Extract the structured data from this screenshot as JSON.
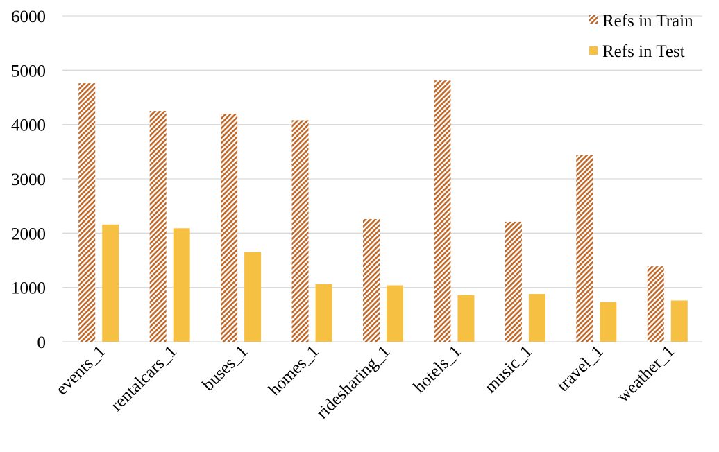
{
  "chart_data": {
    "type": "bar",
    "categories": [
      "events_1",
      "rentalcars_1",
      "buses_1",
      "homes_1",
      "ridesharing_1",
      "hotels_1",
      "music_1",
      "travel_1",
      "weather_1"
    ],
    "series": [
      {
        "name": "Refs in Train",
        "values": [
          4760,
          4250,
          4200,
          4080,
          2260,
          4810,
          2210,
          3440,
          1390
        ],
        "color": "#c0692a",
        "pattern": "diagonal-hatch"
      },
      {
        "name": "Refs in Test",
        "values": [
          2160,
          2090,
          1650,
          1060,
          1040,
          860,
          880,
          730,
          760
        ],
        "color": "#f6c143",
        "pattern": "solid"
      }
    ],
    "yticks": [
      0,
      1000,
      2000,
      3000,
      4000,
      5000,
      6000
    ],
    "ylim": [
      0,
      6000
    ],
    "grid": true,
    "legend_position": "top-right"
  }
}
